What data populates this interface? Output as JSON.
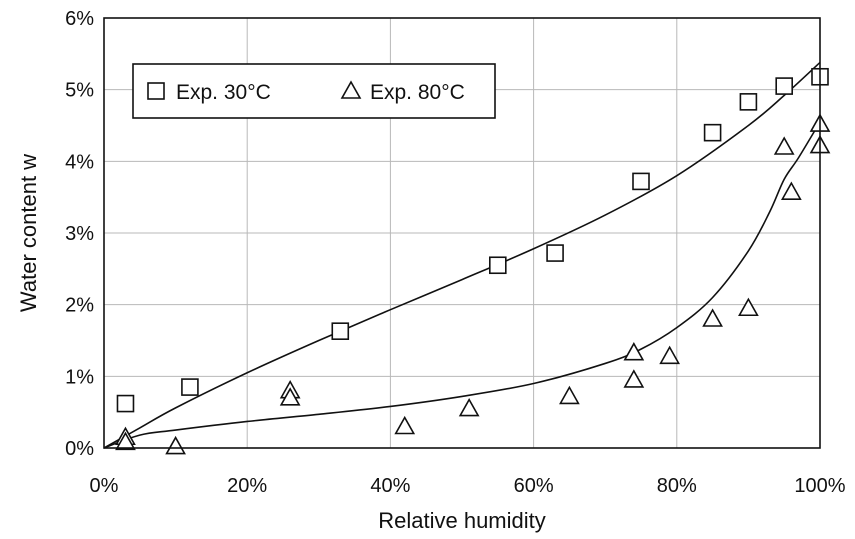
{
  "chart_data": {
    "type": "scatter",
    "xlabel": "Relative humidity",
    "ylabel": "Water content w",
    "xlim": [
      0,
      100
    ],
    "ylim": [
      0,
      6
    ],
    "x_ticks": [
      "0%",
      "20%",
      "40%",
      "60%",
      "80%",
      "100%"
    ],
    "y_ticks": [
      "0%",
      "1%",
      "2%",
      "3%",
      "4%",
      "5%",
      "6%"
    ],
    "grid": true,
    "legend_position": "top-left",
    "series": [
      {
        "name": "Exp. 30°C",
        "marker": "square",
        "points": [
          {
            "x": 3,
            "y": 0.62
          },
          {
            "x": 12,
            "y": 0.85
          },
          {
            "x": 33,
            "y": 1.63
          },
          {
            "x": 55,
            "y": 2.55
          },
          {
            "x": 63,
            "y": 2.72
          },
          {
            "x": 75,
            "y": 3.72
          },
          {
            "x": 85,
            "y": 4.4
          },
          {
            "x": 90,
            "y": 4.83
          },
          {
            "x": 95,
            "y": 5.05
          },
          {
            "x": 100,
            "y": 5.18
          }
        ],
        "fit": [
          [
            0,
            0
          ],
          [
            5,
            0.28
          ],
          [
            10,
            0.56
          ],
          [
            20,
            1.05
          ],
          [
            30,
            1.5
          ],
          [
            40,
            1.93
          ],
          [
            50,
            2.35
          ],
          [
            60,
            2.78
          ],
          [
            70,
            3.25
          ],
          [
            80,
            3.8
          ],
          [
            90,
            4.5
          ],
          [
            95,
            4.92
          ],
          [
            100,
            5.38
          ]
        ]
      },
      {
        "name": "Exp. 80°C",
        "marker": "triangle",
        "points": [
          {
            "x": 3,
            "y": 0.15
          },
          {
            "x": 3,
            "y": 0.08
          },
          {
            "x": 10,
            "y": 0.02
          },
          {
            "x": 26,
            "y": 0.8
          },
          {
            "x": 26,
            "y": 0.7
          },
          {
            "x": 42,
            "y": 0.3
          },
          {
            "x": 51,
            "y": 0.55
          },
          {
            "x": 65,
            "y": 0.72
          },
          {
            "x": 74,
            "y": 1.33
          },
          {
            "x": 74,
            "y": 0.95
          },
          {
            "x": 79,
            "y": 1.28
          },
          {
            "x": 85,
            "y": 1.8
          },
          {
            "x": 90,
            "y": 1.95
          },
          {
            "x": 95,
            "y": 4.2
          },
          {
            "x": 96,
            "y": 3.57
          },
          {
            "x": 100,
            "y": 4.52
          },
          {
            "x": 100,
            "y": 4.22
          }
        ],
        "fit": [
          [
            0,
            0
          ],
          [
            5,
            0.18
          ],
          [
            10,
            0.25
          ],
          [
            20,
            0.37
          ],
          [
            30,
            0.47
          ],
          [
            40,
            0.58
          ],
          [
            50,
            0.72
          ],
          [
            60,
            0.9
          ],
          [
            70,
            1.18
          ],
          [
            75,
            1.38
          ],
          [
            80,
            1.68
          ],
          [
            85,
            2.1
          ],
          [
            90,
            2.75
          ],
          [
            93,
            3.3
          ],
          [
            95,
            3.75
          ],
          [
            97,
            4.05
          ],
          [
            100,
            4.55
          ]
        ]
      }
    ]
  }
}
